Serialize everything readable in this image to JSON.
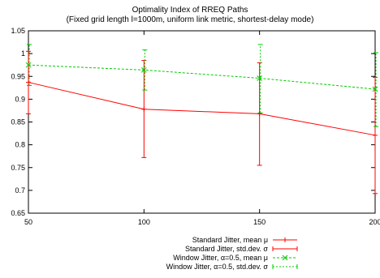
{
  "chart_data": {
    "type": "line",
    "title": "Optimality Index of RREQ Paths",
    "subtitle": "(Fixed grid length l=1000m, uniform link metric, shortest-delay mode)",
    "xlabel": "",
    "ylabel": "",
    "x": [
      50,
      100,
      150,
      200
    ],
    "x_ticks": [
      "50",
      "100",
      "150",
      "200"
    ],
    "y_ticks": [
      "0.65",
      "0.7",
      "0.75",
      "0.8",
      "0.85",
      "0.9",
      "0.95",
      "1",
      "1.05"
    ],
    "xlim": [
      50,
      200
    ],
    "ylim": [
      0.65,
      1.05
    ],
    "grid": false,
    "legend_position": "bottom-right",
    "series": [
      {
        "name": "Standard Jitter, mean μ",
        "color": "#ff0000",
        "style": "solid",
        "values": [
          0.937,
          0.878,
          0.868,
          0.821
        ]
      },
      {
        "name": "Window Jitter, α=0.5, mean μ",
        "color": "#00cc00",
        "style": "dashed",
        "values": [
          0.975,
          0.964,
          0.946,
          0.922
        ]
      }
    ],
    "error_bars": [
      {
        "name": "Standard Jitter, std.dev. σ",
        "color": "#ff0000",
        "style": "solid",
        "low": [
          0.868,
          0.772,
          0.755,
          0.693
        ],
        "high": [
          1.005,
          0.985,
          0.98,
          0.948
        ]
      },
      {
        "name": "Window Jitter, α=0.5, std.dev. σ",
        "color": "#00cc00",
        "style": "dashed",
        "low": [
          0.93,
          0.92,
          0.87,
          0.84
        ],
        "high": [
          1.02,
          1.008,
          1.02,
          1.002
        ]
      }
    ]
  }
}
